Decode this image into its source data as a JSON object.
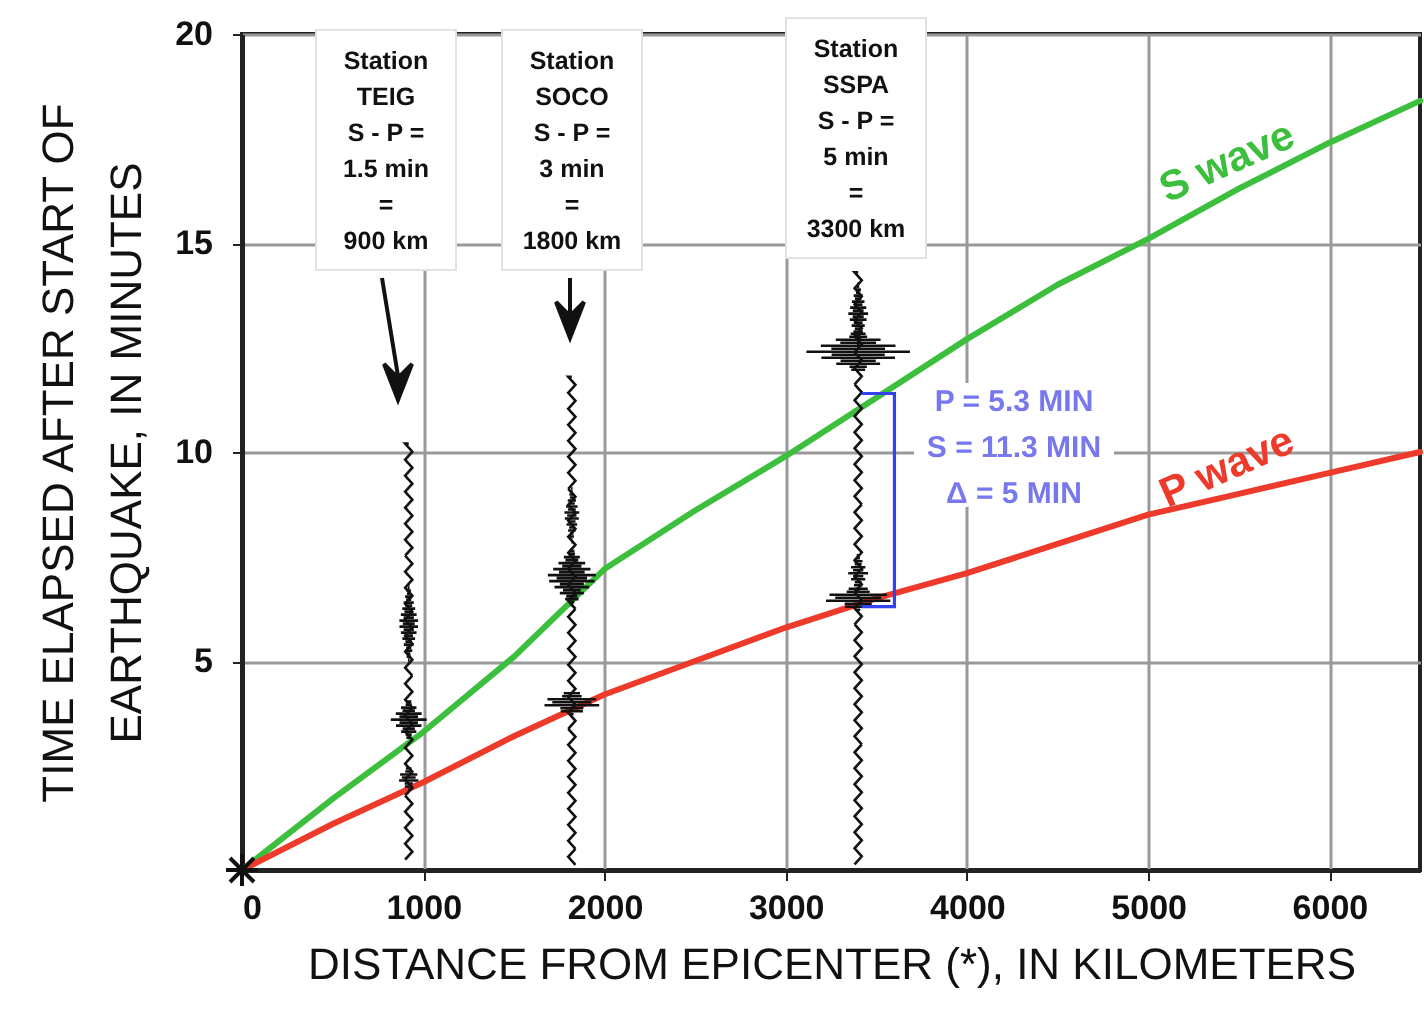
{
  "chart_data": {
    "type": "line",
    "xlabel": "DISTANCE FROM EPICENTER (*), IN KILOMETERS",
    "ylabel": "TIME ELAPSED AFTER START OF\nEARTHQUAKE, IN MINUTES",
    "x": [
      0,
      500,
      1000,
      1500,
      2000,
      2500,
      3000,
      3500,
      4000,
      4500,
      5000,
      5500,
      6000,
      6500
    ],
    "series": [
      {
        "name": "S wave",
        "color": "#3cbf3c",
        "values": [
          0,
          1.7,
          3.3,
          5.1,
          7.2,
          8.6,
          9.9,
          11.3,
          12.7,
          14.0,
          15.1,
          16.3,
          17.4,
          18.4
        ]
      },
      {
        "name": "P wave",
        "color": "#ee3a2a",
        "values": [
          0,
          1.1,
          2.1,
          3.2,
          4.2,
          5.0,
          5.8,
          6.5,
          7.1,
          7.8,
          8.5,
          9.0,
          9.5,
          10.0
        ]
      }
    ],
    "xlim": [
      0,
      6500
    ],
    "xticks": [
      0,
      1000,
      2000,
      3000,
      4000,
      5000,
      6000
    ],
    "ylim": [
      0,
      20
    ],
    "yticks": [
      5,
      10,
      15,
      20
    ],
    "grid": true,
    "marker": "none",
    "line_style": "solid",
    "annotations": [
      "Station\nTEIG\nS - P =\n1.5 min\n=\n900 km",
      "Station\nSOCO\nS - P =\n3 min\n=\n1800 km",
      "Station\nSSPA\nS - P =\n5 min\n=\n3300 km",
      "P = 5.3 MIN\nS = 11.3 MIN\nΔ = 5 MIN"
    ]
  }
}
